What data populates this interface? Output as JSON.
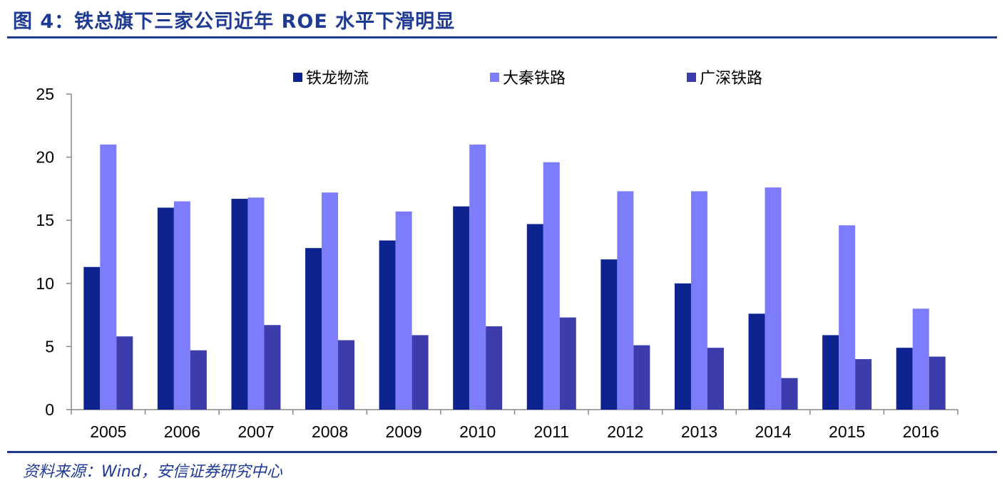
{
  "header": {
    "title": "图 4：铁总旗下三家公司近年 ROE 水平下滑明显"
  },
  "footer": {
    "source": "资料来源：Wind，安信证券研究中心"
  },
  "colors": {
    "brand": "#1f3a93",
    "series": [
      "#0d2490",
      "#7d7dfb",
      "#3c3cad"
    ]
  },
  "chart_data": {
    "type": "bar",
    "categories": [
      "2005",
      "2006",
      "2007",
      "2008",
      "2009",
      "2010",
      "2011",
      "2012",
      "2013",
      "2014",
      "2015",
      "2016"
    ],
    "series": [
      {
        "name": "铁龙物流",
        "values": [
          11.3,
          16.0,
          16.7,
          12.8,
          13.4,
          16.1,
          14.7,
          11.9,
          10.0,
          7.6,
          5.9,
          4.9
        ]
      },
      {
        "name": "大秦铁路",
        "values": [
          21.0,
          16.5,
          16.8,
          17.2,
          15.7,
          21.0,
          19.6,
          17.3,
          17.3,
          17.6,
          14.6,
          8.0
        ]
      },
      {
        "name": "广深铁路",
        "values": [
          5.8,
          4.7,
          6.7,
          5.5,
          5.9,
          6.6,
          7.3,
          5.1,
          4.9,
          2.5,
          4.0,
          4.2
        ]
      }
    ],
    "y_ticks": [
      "0",
      "5",
      "10",
      "15",
      "20",
      "25"
    ],
    "ylim": [
      0,
      25
    ],
    "grid": false,
    "legend_position": "top"
  }
}
